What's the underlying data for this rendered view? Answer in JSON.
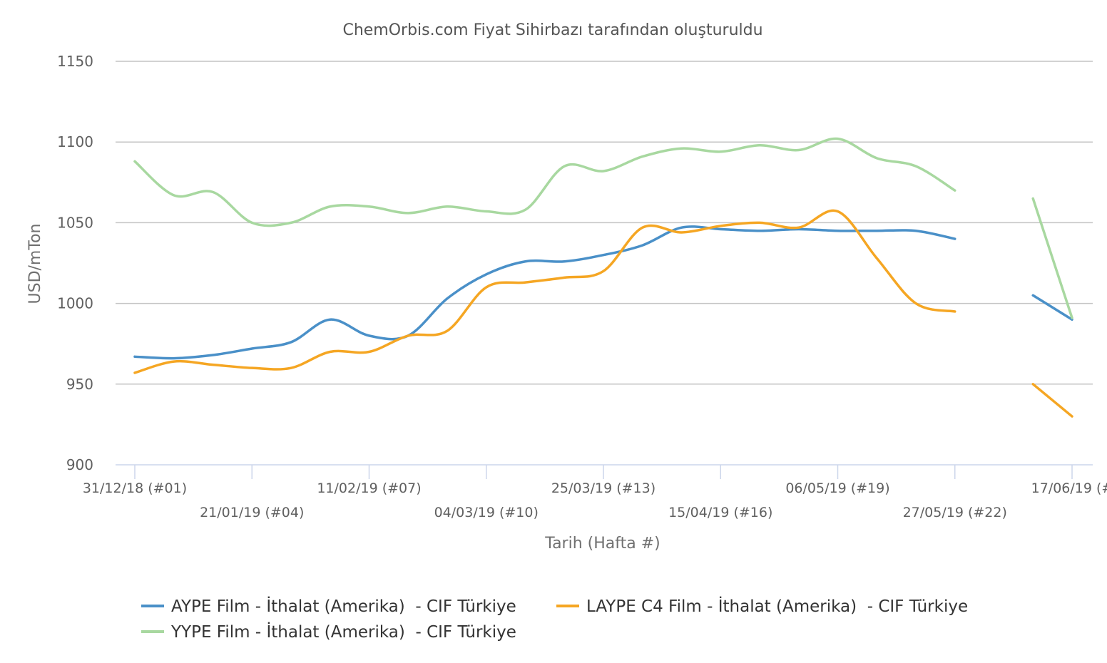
{
  "chart_data": {
    "type": "line",
    "title": "",
    "subtitle": "ChemOrbis.com Fiyat Sihirbazı tarafından oluşturuldu",
    "xlabel": "Tarih (Hafta #)",
    "ylabel": "USD/mTon",
    "ylim": [
      900,
      1150
    ],
    "yticks": [
      900,
      950,
      1000,
      1050,
      1100,
      1150
    ],
    "grid": true,
    "legend_position": "bottom",
    "x_start": "2018-12-31",
    "x_end": "2019-06-17",
    "xticks": [
      {
        "date": "2018-12-31",
        "label": "31/12/18 (#01)"
      },
      {
        "date": "2019-01-21",
        "label": "21/01/19 (#04)"
      },
      {
        "date": "2019-02-11",
        "label": "11/02/19 (#07)"
      },
      {
        "date": "2019-03-04",
        "label": "04/03/19 (#10)"
      },
      {
        "date": "2019-03-25",
        "label": "25/03/19 (#13)"
      },
      {
        "date": "2019-04-15",
        "label": "15/04/19 (#16)"
      },
      {
        "date": "2019-05-06",
        "label": "06/05/19 (#19)"
      },
      {
        "date": "2019-05-27",
        "label": "27/05/19 (#22)"
      },
      {
        "date": "2019-06-17",
        "label": "17/06/19 (#"
      }
    ],
    "series": [
      {
        "name": "AYPE Film - İthalat (Amerika)  - CIF Türkiye",
        "color": "#4A90C8",
        "segments": [
          [
            [
              "2018-12-31",
              967
            ],
            [
              "2019-01-07",
              966
            ],
            [
              "2019-01-14",
              968
            ],
            [
              "2019-01-21",
              972
            ],
            [
              "2019-01-28",
              976
            ],
            [
              "2019-02-04",
              990
            ],
            [
              "2019-02-11",
              980
            ],
            [
              "2019-02-18",
              980
            ],
            [
              "2019-02-25",
              1003
            ],
            [
              "2019-03-04",
              1018
            ],
            [
              "2019-03-11",
              1026
            ],
            [
              "2019-03-18",
              1026
            ],
            [
              "2019-03-25",
              1030
            ],
            [
              "2019-04-01",
              1036
            ],
            [
              "2019-04-08",
              1047
            ],
            [
              "2019-04-15",
              1046
            ],
            [
              "2019-04-22",
              1045
            ],
            [
              "2019-04-29",
              1046
            ],
            [
              "2019-05-06",
              1045
            ],
            [
              "2019-05-13",
              1045
            ],
            [
              "2019-05-20",
              1045
            ],
            [
              "2019-05-27",
              1040
            ]
          ],
          [
            [
              "2019-06-10",
              1005
            ],
            [
              "2019-06-17",
              990
            ]
          ]
        ]
      },
      {
        "name": "LAYPE C4 Film - İthalat (Amerika)  - CIF Türkiye",
        "color": "#F5A623",
        "segments": [
          [
            [
              "2018-12-31",
              957
            ],
            [
              "2019-01-07",
              964
            ],
            [
              "2019-01-14",
              962
            ],
            [
              "2019-01-21",
              960
            ],
            [
              "2019-01-28",
              960
            ],
            [
              "2019-02-04",
              970
            ],
            [
              "2019-02-11",
              970
            ],
            [
              "2019-02-18",
              980
            ],
            [
              "2019-02-25",
              983
            ],
            [
              "2019-03-04",
              1010
            ],
            [
              "2019-03-11",
              1013
            ],
            [
              "2019-03-18",
              1016
            ],
            [
              "2019-03-25",
              1020
            ],
            [
              "2019-04-01",
              1047
            ],
            [
              "2019-04-08",
              1044
            ],
            [
              "2019-04-15",
              1048
            ],
            [
              "2019-04-22",
              1050
            ],
            [
              "2019-04-29",
              1047
            ],
            [
              "2019-05-06",
              1057
            ],
            [
              "2019-05-13",
              1028
            ],
            [
              "2019-05-20",
              1000
            ],
            [
              "2019-05-27",
              995
            ]
          ],
          [
            [
              "2019-06-10",
              950
            ],
            [
              "2019-06-17",
              930
            ]
          ]
        ]
      },
      {
        "name": "YYPE Film - İthalat (Amerika)  - CIF Türkiye",
        "color": "#A8D8A0",
        "segments": [
          [
            [
              "2018-12-31",
              1088
            ],
            [
              "2019-01-07",
              1067
            ],
            [
              "2019-01-14",
              1069
            ],
            [
              "2019-01-21",
              1050
            ],
            [
              "2019-01-28",
              1050
            ],
            [
              "2019-02-04",
              1060
            ],
            [
              "2019-02-11",
              1060
            ],
            [
              "2019-02-18",
              1056
            ],
            [
              "2019-02-25",
              1060
            ],
            [
              "2019-03-04",
              1057
            ],
            [
              "2019-03-11",
              1058
            ],
            [
              "2019-03-18",
              1085
            ],
            [
              "2019-03-25",
              1082
            ],
            [
              "2019-04-01",
              1091
            ],
            [
              "2019-04-08",
              1096
            ],
            [
              "2019-04-15",
              1094
            ],
            [
              "2019-04-22",
              1098
            ],
            [
              "2019-04-29",
              1095
            ],
            [
              "2019-05-06",
              1102
            ],
            [
              "2019-05-13",
              1090
            ],
            [
              "2019-05-20",
              1085
            ],
            [
              "2019-05-27",
              1070
            ]
          ],
          [
            [
              "2019-06-10",
              1065
            ],
            [
              "2019-06-17",
              991
            ]
          ]
        ]
      }
    ]
  }
}
